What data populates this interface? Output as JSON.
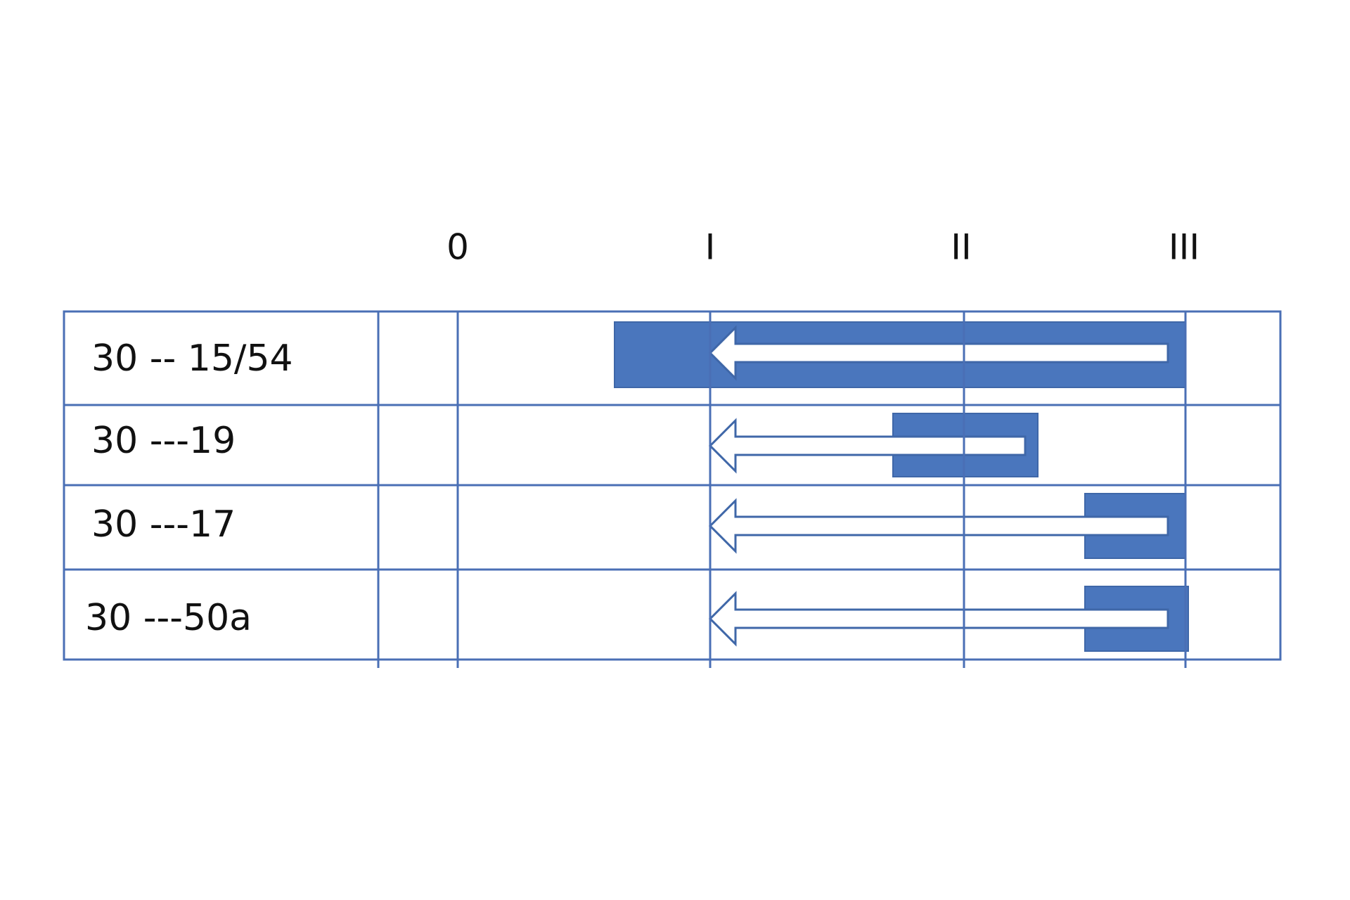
{
  "columns": [
    "0",
    "I",
    "II",
    "III"
  ],
  "rows": [
    "30 -- 15/54",
    "30 ---19",
    "30 ---17",
    "30 ---50a"
  ]
}
